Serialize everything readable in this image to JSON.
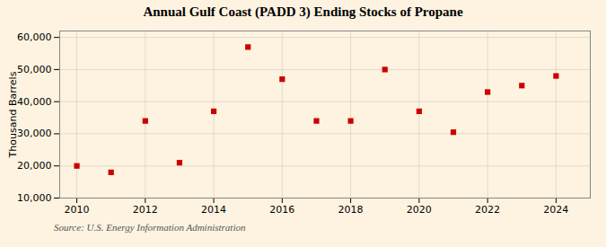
{
  "chart_data": {
    "type": "scatter",
    "title": "Annual Gulf Coast (PADD 3) Ending Stocks of Propane",
    "ylabel": "Thousand Barrels",
    "source": "Source: U.S. Energy Information Administration",
    "x": [
      2010,
      2011,
      2012,
      2013,
      2014,
      2015,
      2016,
      2017,
      2018,
      2019,
      2020,
      2021,
      2022,
      2023,
      2024
    ],
    "values": [
      20000,
      18000,
      34000,
      21000,
      37000,
      57000,
      47000,
      34000,
      34000,
      50000,
      37000,
      30500,
      43000,
      45000,
      48000
    ],
    "color": "#cc0000",
    "marker": "square",
    "xlim": [
      2009.5,
      2025
    ],
    "ylim": [
      10000,
      62000
    ],
    "xticks": [
      2010,
      2012,
      2014,
      2016,
      2018,
      2020,
      2022,
      2024
    ],
    "yticks": [
      {
        "value": 10000,
        "label": "10,000"
      },
      {
        "value": 20000,
        "label": "20,000"
      },
      {
        "value": 30000,
        "label": "30,000"
      },
      {
        "value": 40000,
        "label": "40,000"
      },
      {
        "value": 50000,
        "label": "50,000"
      },
      {
        "value": 60000,
        "label": "60,000"
      }
    ],
    "grid": true
  }
}
